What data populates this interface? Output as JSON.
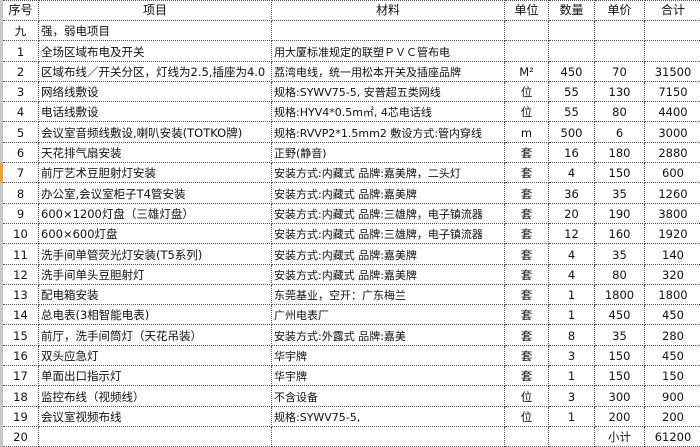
{
  "header": {
    "seq": "序号",
    "item": "项目",
    "material": "材料",
    "unit": "单位",
    "qty": "数量",
    "price": "单价",
    "total": "合计"
  },
  "section": {
    "seq": "九",
    "item": "强，弱电项目"
  },
  "rows": [
    {
      "seq": "1",
      "item": "全场区域布电及开关",
      "material": "用大厦标准规定的联塑ＰＶＣ管布电",
      "unit": "",
      "qty": "",
      "price": "",
      "total": ""
    },
    {
      "seq": "2",
      "item": "区域布线／开关分区，灯线为2.5,插座为4.0",
      "material": "荔湾电线，统一用松本开关及插座品牌",
      "unit": "M²",
      "qty": "450",
      "price": "70",
      "total": "31500"
    },
    {
      "seq": "3",
      "item": "网络线敷设",
      "material": "规格:SYWV75-5,  安普超五类网线",
      "unit": "位",
      "qty": "55",
      "price": "130",
      "total": "7150"
    },
    {
      "seq": "4",
      "item": "电话线敷设",
      "material": "规格:HYV4*0.5m㎡,  4芯电话线",
      "unit": "位",
      "qty": "55",
      "price": "80",
      "total": "4400"
    },
    {
      "seq": "5",
      "item": "会议室音频线敷设,喇叭安装(TOTKO牌)",
      "material": "规格:RVVP2*1.5mm2 敷设方式:管内穿线",
      "unit": "m",
      "qty": "500",
      "price": "6",
      "total": "3000"
    },
    {
      "seq": "6",
      "item": "天花排气扇安装",
      "material": "正野(静音)",
      "unit": "套",
      "qty": "16",
      "price": "180",
      "total": "2880"
    },
    {
      "seq": "7",
      "item": "前厅艺术豆胆射灯安装",
      "material": "安装方式:内藏式    品牌:嘉美牌，二头灯",
      "unit": "套",
      "qty": "4",
      "price": "150",
      "total": "600"
    },
    {
      "seq": "8",
      "item": "办公室,会议室柜子T4管安装",
      "material": "安装方式:内藏式    品牌:嘉美牌",
      "unit": "套",
      "qty": "36",
      "price": "35",
      "total": "1260"
    },
    {
      "seq": "9",
      "item": "600×1200灯盘（三雄灯盘）",
      "material": "安装方式:内藏式  品牌:三雄牌，电子镇流器",
      "unit": "套",
      "qty": "20",
      "price": "190",
      "total": "3800"
    },
    {
      "seq": "10",
      "item": "600×600灯盘",
      "material": "安装方式:内藏式  品牌:三雄牌，电子镇流器",
      "unit": "套",
      "qty": "12",
      "price": "160",
      "total": "1920"
    },
    {
      "seq": "11",
      "item": "洗手间单管荧光灯安装(T5系列)",
      "material": "安装方式:内藏式    品牌:嘉美牌",
      "unit": "套",
      "qty": "4",
      "price": "35",
      "total": "140"
    },
    {
      "seq": "12",
      "item": "洗手间单头豆胆射灯",
      "material": "安装方式:内藏式    品牌:嘉美牌",
      "unit": "套",
      "qty": "4",
      "price": "80",
      "total": "320"
    },
    {
      "seq": "13",
      "item": "配电箱安装",
      "material": "东莞基业，空开：广东梅兰",
      "unit": "套",
      "qty": "1",
      "price": "1800",
      "total": "1800"
    },
    {
      "seq": "14",
      "item": "总电表(3相智能电表)",
      "material": "广州电表厂",
      "unit": "套",
      "qty": "1",
      "price": "450",
      "total": "450"
    },
    {
      "seq": "15",
      "item": "前厅，洗手间筒灯（天花吊装）",
      "material": "安装方式:外露式          品牌:嘉美",
      "unit": "套",
      "qty": "8",
      "price": "35",
      "total": "280"
    },
    {
      "seq": "16",
      "item": "双头应急灯",
      "material": "华宇牌",
      "unit": "套",
      "qty": "3",
      "price": "150",
      "total": "450"
    },
    {
      "seq": "17",
      "item": "单面出口指示灯",
      "material": "华宇牌",
      "unit": "套",
      "qty": "1",
      "price": "150",
      "total": "150"
    },
    {
      "seq": "18",
      "item": "监控布线（视频线）",
      "material": "不含设备",
      "unit": "位",
      "qty": "3",
      "price": "300",
      "total": "900"
    },
    {
      "seq": "19",
      "item": "会议室视频布线",
      "material": "规格:SYWV75-5,",
      "unit": "位",
      "qty": "1",
      "price": "200",
      "total": "200"
    },
    {
      "seq": "20",
      "item": "",
      "material": "",
      "unit": "",
      "qty": "",
      "price": "小计",
      "total": "61200"
    }
  ]
}
